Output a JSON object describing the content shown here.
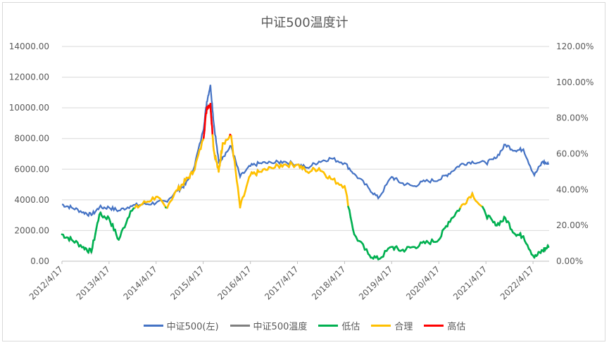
{
  "chart_data": {
    "type": "line",
    "title": "中证500温度计",
    "x_tick_labels": [
      "2012/4/17",
      "2013/4/17",
      "2014/4/17",
      "2015/4/17",
      "2016/4/17",
      "2017/4/17",
      "2018/4/17",
      "2019/4/17",
      "2020/4/17",
      "2021/4/17",
      "2022/4/17"
    ],
    "y_left": {
      "ylim": [
        0,
        14000
      ],
      "tick_labels": [
        "0.00",
        "2000.00",
        "4000.00",
        "6000.00",
        "8000.00",
        "10000.00",
        "12000.00",
        "14000.00"
      ]
    },
    "y_right": {
      "ylim": [
        0,
        1.2
      ],
      "tick_labels": [
        "0.00%",
        "20.00%",
        "40.00%",
        "60.00%",
        "80.00%",
        "100.00%",
        "120.00%"
      ]
    },
    "grid": true,
    "legend_position": "bottom",
    "colors": {
      "index": "#4472c4",
      "temperature": "#7f7f7f",
      "low": "#00b050",
      "fair": "#ffc000",
      "high": "#ff0000"
    },
    "series": [
      {
        "name": "中证500(左)",
        "axis": "left",
        "x": [
          "2012/4/17",
          "2012/7/1",
          "2012/10/1",
          "2012/12/1",
          "2013/2/1",
          "2013/4/17",
          "2013/7/1",
          "2013/10/1",
          "2014/1/1",
          "2014/4/17",
          "2014/7/1",
          "2014/10/1",
          "2014/12/1",
          "2015/2/1",
          "2015/4/17",
          "2015/5/15",
          "2015/6/12",
          "2015/7/8",
          "2015/8/15",
          "2015/9/15",
          "2015/11/20",
          "2016/1/28",
          "2016/4/17",
          "2016/7/1",
          "2016/10/1",
          "2017/1/1",
          "2017/4/17",
          "2017/7/1",
          "2017/10/1",
          "2018/1/1",
          "2018/4/17",
          "2018/7/1",
          "2018/10/18",
          "2019/1/3",
          "2019/4/17",
          "2019/7/1",
          "2019/10/1",
          "2020/1/1",
          "2020/4/17",
          "2020/7/1",
          "2020/10/1",
          "2021/1/1",
          "2021/4/17",
          "2021/7/1",
          "2021/9/15",
          "2021/12/1",
          "2022/2/1",
          "2022/4/27",
          "2022/7/1",
          "2022/8/15"
        ],
        "values": [
          3700,
          3500,
          3200,
          3000,
          3500,
          3500,
          3300,
          3600,
          3700,
          3800,
          3900,
          4600,
          5000,
          6000,
          8500,
          10400,
          11500,
          9000,
          6500,
          6800,
          7500,
          5500,
          6200,
          6400,
          6400,
          6500,
          6300,
          6100,
          6500,
          6700,
          6400,
          5700,
          4800,
          4100,
          5500,
          5100,
          4900,
          5200,
          5300,
          5700,
          6300,
          6500,
          6400,
          6700,
          7600,
          7200,
          7300,
          5600,
          6500,
          6300
        ]
      },
      {
        "name": "中证500温度",
        "axis": "right",
        "x": [
          "2012/4/17",
          "2012/7/1",
          "2012/10/1",
          "2012/12/1",
          "2013/2/1",
          "2013/4/17",
          "2013/7/1",
          "2013/10/1",
          "2014/1/1",
          "2014/4/17",
          "2014/7/1",
          "2014/10/1",
          "2014/12/1",
          "2015/2/1",
          "2015/4/17",
          "2015/5/15",
          "2015/6/12",
          "2015/7/8",
          "2015/8/15",
          "2015/9/15",
          "2015/11/20",
          "2016/1/28",
          "2016/4/17",
          "2016/7/1",
          "2016/10/1",
          "2017/1/1",
          "2017/4/17",
          "2017/7/1",
          "2017/10/1",
          "2018/1/1",
          "2018/4/17",
          "2018/7/1",
          "2018/10/18",
          "2019/1/3",
          "2019/4/17",
          "2019/7/1",
          "2019/10/1",
          "2020/1/1",
          "2020/4/17",
          "2020/7/1",
          "2020/10/1",
          "2021/1/1",
          "2021/4/17",
          "2021/7/1",
          "2021/9/15",
          "2021/12/1",
          "2022/2/1",
          "2022/4/27",
          "2022/7/1",
          "2022/8/15"
        ],
        "values": [
          0.15,
          0.12,
          0.08,
          0.05,
          0.26,
          0.24,
          0.12,
          0.28,
          0.32,
          0.36,
          0.3,
          0.4,
          0.45,
          0.5,
          0.68,
          0.86,
          0.88,
          0.62,
          0.5,
          0.66,
          0.7,
          0.3,
          0.48,
          0.5,
          0.52,
          0.54,
          0.54,
          0.5,
          0.52,
          0.46,
          0.42,
          0.15,
          0.04,
          0.01,
          0.08,
          0.06,
          0.08,
          0.1,
          0.12,
          0.22,
          0.3,
          0.38,
          0.26,
          0.2,
          0.24,
          0.15,
          0.14,
          0.02,
          0.06,
          0.08
        ]
      }
    ],
    "zones": [
      {
        "name": "低估",
        "color": "#00b050",
        "range": [
          0,
          0.3
        ]
      },
      {
        "name": "合理",
        "color": "#ffc000",
        "range": [
          0.3,
          0.7
        ]
      },
      {
        "name": "高估",
        "color": "#ff0000",
        "range": [
          0.7,
          1.2
        ]
      }
    ]
  }
}
